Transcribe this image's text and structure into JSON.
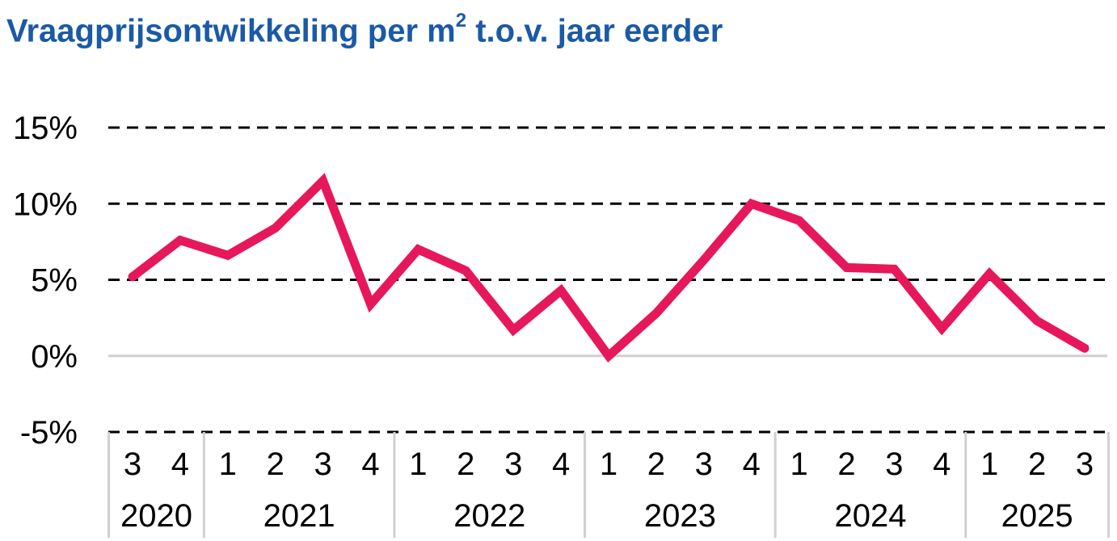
{
  "chart_data": {
    "type": "line",
    "title": "Vraagprijsontwikkeling per m",
    "title_superscript": "2",
    "title_suffix": " t.o.v. jaar eerder",
    "ylim": [
      -5,
      15
    ],
    "yticks": [
      -5,
      0,
      5,
      10,
      15
    ],
    "ytick_labels": [
      "-5%",
      "0%",
      "5%",
      "10%",
      "15%"
    ],
    "grid": "dashed horizontal",
    "x": [
      "3",
      "4",
      "1",
      "2",
      "3",
      "4",
      "1",
      "2",
      "3",
      "4",
      "1",
      "2",
      "3",
      "4",
      "1",
      "2",
      "3",
      "4",
      "1",
      "2",
      "3"
    ],
    "x_groups": [
      {
        "label": "2020",
        "count": 2
      },
      {
        "label": "2021",
        "count": 4
      },
      {
        "label": "2022",
        "count": 4
      },
      {
        "label": "2023",
        "count": 4
      },
      {
        "label": "2024",
        "count": 4
      },
      {
        "label": "2025",
        "count": 3
      }
    ],
    "series": [
      {
        "color": "#e6185a",
        "values": [
          5.2,
          7.6,
          6.6,
          8.4,
          11.5,
          3.4,
          7.0,
          5.6,
          1.7,
          4.3,
          0.0,
          2.8,
          6.3,
          10.0,
          8.9,
          5.8,
          5.7,
          1.8,
          5.4,
          2.3,
          0.5
        ]
      }
    ],
    "colors": {
      "title": "#1a5aa6",
      "line": "#e6185a",
      "zero_line": "#d0d0d0",
      "grid": "#000000",
      "axis": "#d0d0d0"
    }
  }
}
